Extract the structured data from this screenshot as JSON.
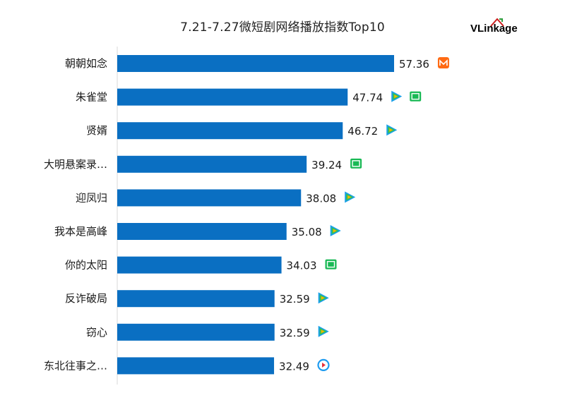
{
  "title": "7.21-7.27微短剧网络播放指数Top10",
  "brand": {
    "logo_text": "VLinkage",
    "color": "#cc1f1f"
  },
  "colors": {
    "bar": "#0a6fc2",
    "axis": "#d9d9d9",
    "mango": "#ff6a13",
    "iqiyi": "#19b955",
    "tencent_blue": "#1aa0e8",
    "tencent_green": "#35c24f",
    "tencent_yellow": "#f7b500",
    "youku": "#1e9bf0"
  },
  "chart_data": {
    "type": "bar",
    "orientation": "horizontal",
    "categories": [
      "朝朝如念",
      "朱雀堂",
      "贤婿",
      "大明悬案录…",
      "迎凤归",
      "我本是高峰",
      "你的太阳",
      "反诈破局",
      "窃心",
      "东北往事之…"
    ],
    "values": [
      57.36,
      47.74,
      46.72,
      39.24,
      38.08,
      35.08,
      34.03,
      32.59,
      32.59,
      32.49
    ],
    "platform_icons": [
      [
        "mango-tv-icon"
      ],
      [
        "tencent-video-icon",
        "iqiyi-icon"
      ],
      [
        "tencent-video-icon"
      ],
      [
        "iqiyi-icon"
      ],
      [
        "tencent-video-icon"
      ],
      [
        "tencent-video-icon"
      ],
      [
        "iqiyi-icon"
      ],
      [
        "tencent-video-icon"
      ],
      [
        "tencent-video-icon"
      ],
      [
        "youku-icon"
      ]
    ],
    "xlim": [
      0,
      70
    ],
    "grid": false,
    "legend": "none"
  }
}
